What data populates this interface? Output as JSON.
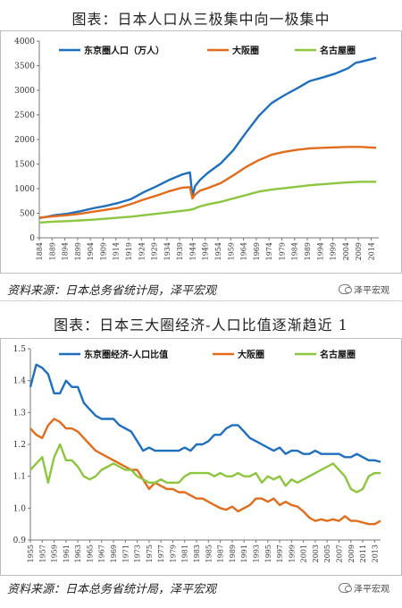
{
  "chart_data": [
    {
      "type": "line",
      "title": "图表：日本人口从三极集中向一极集中",
      "source": "资料来源：日本总务省统计局，泽平宏观",
      "watermark": "泽平宏观",
      "xlim": [
        1884,
        2017
      ],
      "ylim": [
        0,
        4000
      ],
      "yticks": [
        0,
        500,
        1000,
        1500,
        2000,
        2500,
        3000,
        3500,
        4000
      ],
      "xtick_labels": [
        "1884",
        "1889",
        "1894",
        "1899",
        "1904",
        "1909",
        "1914",
        "1919",
        "1924",
        "1929",
        "1934",
        "1939",
        "1944",
        "1949",
        "1954",
        "1959",
        "1964",
        "1969",
        "1974",
        "1979",
        "1984",
        "1989",
        "1994",
        "1999",
        "2004",
        "2009",
        "2014"
      ],
      "legend_position": "top",
      "series": [
        {
          "name": "东京圈人口（万人）",
          "color": "#1f6fbf",
          "x": [
            1884,
            1890,
            1895,
            1900,
            1905,
            1910,
            1915,
            1920,
            1925,
            1930,
            1935,
            1940,
            1943,
            1944,
            1945,
            1947,
            1950,
            1955,
            1960,
            1965,
            1970,
            1975,
            1980,
            1985,
            1990,
            1995,
            2000,
            2005,
            2008,
            2010,
            2013,
            2016
          ],
          "y": [
            400,
            460,
            490,
            540,
            600,
            650,
            710,
            790,
            930,
            1050,
            1180,
            1290,
            1330,
            850,
            1050,
            1180,
            1320,
            1510,
            1780,
            2140,
            2480,
            2740,
            2900,
            3040,
            3190,
            3260,
            3340,
            3450,
            3560,
            3580,
            3620,
            3660
          ]
        },
        {
          "name": "大阪圈",
          "color": "#e06c1c",
          "x": [
            1884,
            1890,
            1895,
            1900,
            1905,
            1910,
            1915,
            1920,
            1925,
            1930,
            1935,
            1940,
            1943,
            1944,
            1945,
            1947,
            1950,
            1955,
            1960,
            1965,
            1970,
            1975,
            1980,
            1985,
            1990,
            1995,
            2000,
            2005,
            2010,
            2016
          ],
          "y": [
            410,
            440,
            460,
            490,
            530,
            570,
            610,
            690,
            780,
            860,
            950,
            1020,
            1030,
            800,
            880,
            960,
            1010,
            1110,
            1270,
            1440,
            1580,
            1690,
            1750,
            1790,
            1820,
            1830,
            1840,
            1850,
            1850,
            1830
          ]
        },
        {
          "name": "名古屋圈",
          "color": "#8cc63f",
          "x": [
            1884,
            1890,
            1895,
            1900,
            1905,
            1910,
            1915,
            1920,
            1925,
            1930,
            1935,
            1940,
            1943,
            1944,
            1945,
            1947,
            1950,
            1955,
            1960,
            1965,
            1970,
            1975,
            1980,
            1985,
            1990,
            1995,
            2000,
            2005,
            2010,
            2016
          ],
          "y": [
            310,
            330,
            340,
            355,
            370,
            390,
            410,
            430,
            460,
            490,
            520,
            550,
            570,
            580,
            600,
            640,
            680,
            730,
            800,
            870,
            940,
            980,
            1010,
            1040,
            1070,
            1090,
            1110,
            1130,
            1140,
            1140
          ]
        }
      ]
    },
    {
      "type": "line",
      "title": "图表：日本三大圈经济-人口比值逐渐趋近 1",
      "source": "资料来源：日本总务省统计局，泽平宏观",
      "watermark": "泽平宏观",
      "xlim": [
        1955,
        2014
      ],
      "ylim": [
        0.9,
        1.5
      ],
      "yticks": [
        0.9,
        1.0,
        1.1,
        1.2,
        1.3,
        1.4,
        1.5
      ],
      "xtick_labels": [
        "1955",
        "1957",
        "1959",
        "1961",
        "1963",
        "1965",
        "1967",
        "1969",
        "1971",
        "1973",
        "1975",
        "1977",
        "1979",
        "1981",
        "1983",
        "1985",
        "1987",
        "1989",
        "1991",
        "1993",
        "1995",
        "1997",
        "1999",
        "2001",
        "2003",
        "2005",
        "2007",
        "2009",
        "2011",
        "2013"
      ],
      "legend_position": "top",
      "series": [
        {
          "name": "东京圈经济-人口比值",
          "color": "#1f6fbf",
          "x": [
            1955,
            1956,
            1957,
            1958,
            1959,
            1960,
            1961,
            1962,
            1963,
            1964,
            1965,
            1966,
            1967,
            1968,
            1969,
            1970,
            1971,
            1972,
            1973,
            1974,
            1975,
            1976,
            1977,
            1978,
            1979,
            1980,
            1981,
            1982,
            1983,
            1984,
            1985,
            1986,
            1987,
            1988,
            1989,
            1990,
            1991,
            1992,
            1993,
            1994,
            1995,
            1996,
            1997,
            1998,
            1999,
            2000,
            2001,
            2002,
            2003,
            2004,
            2005,
            2006,
            2007,
            2008,
            2009,
            2010,
            2011,
            2012,
            2013,
            2014
          ],
          "y": [
            1.38,
            1.45,
            1.44,
            1.42,
            1.36,
            1.36,
            1.4,
            1.38,
            1.38,
            1.33,
            1.31,
            1.29,
            1.28,
            1.28,
            1.28,
            1.26,
            1.25,
            1.24,
            1.21,
            1.18,
            1.19,
            1.18,
            1.18,
            1.18,
            1.18,
            1.18,
            1.19,
            1.18,
            1.2,
            1.2,
            1.21,
            1.23,
            1.23,
            1.25,
            1.26,
            1.26,
            1.24,
            1.22,
            1.21,
            1.2,
            1.19,
            1.18,
            1.19,
            1.17,
            1.18,
            1.18,
            1.17,
            1.17,
            1.18,
            1.17,
            1.17,
            1.17,
            1.17,
            1.16,
            1.16,
            1.17,
            1.16,
            1.15,
            1.15,
            1.145
          ]
        },
        {
          "name": "大阪圈",
          "color": "#e06c1c",
          "x": [
            1955,
            1956,
            1957,
            1958,
            1959,
            1960,
            1961,
            1962,
            1963,
            1964,
            1965,
            1966,
            1967,
            1968,
            1969,
            1970,
            1971,
            1972,
            1973,
            1974,
            1975,
            1976,
            1977,
            1978,
            1979,
            1980,
            1981,
            1982,
            1983,
            1984,
            1985,
            1986,
            1987,
            1988,
            1989,
            1990,
            1991,
            1992,
            1993,
            1994,
            1995,
            1996,
            1997,
            1998,
            1999,
            2000,
            2001,
            2002,
            2003,
            2004,
            2005,
            2006,
            2007,
            2008,
            2009,
            2010,
            2011,
            2012,
            2013,
            2014
          ],
          "y": [
            1.25,
            1.23,
            1.22,
            1.26,
            1.28,
            1.27,
            1.25,
            1.25,
            1.24,
            1.22,
            1.2,
            1.18,
            1.17,
            1.16,
            1.15,
            1.14,
            1.13,
            1.12,
            1.12,
            1.09,
            1.06,
            1.08,
            1.07,
            1.06,
            1.06,
            1.05,
            1.05,
            1.04,
            1.03,
            1.03,
            1.02,
            1.01,
            1.0,
            0.995,
            1.005,
            0.99,
            1.0,
            1.01,
            1.03,
            1.03,
            1.02,
            1.03,
            1.01,
            1.02,
            1.01,
            1.005,
            0.99,
            0.97,
            0.96,
            0.965,
            0.96,
            0.965,
            0.96,
            0.975,
            0.96,
            0.96,
            0.955,
            0.95,
            0.95,
            0.96
          ]
        },
        {
          "name": "名古屋圈",
          "color": "#8cc63f",
          "x": [
            1955,
            1956,
            1957,
            1958,
            1959,
            1960,
            1961,
            1962,
            1963,
            1964,
            1965,
            1966,
            1967,
            1968,
            1969,
            1970,
            1971,
            1972,
            1973,
            1974,
            1975,
            1976,
            1977,
            1978,
            1979,
            1980,
            1981,
            1982,
            1983,
            1984,
            1985,
            1986,
            1987,
            1988,
            1989,
            1990,
            1991,
            1992,
            1993,
            1994,
            1995,
            1996,
            1997,
            1998,
            1999,
            2000,
            2001,
            2002,
            2003,
            2004,
            2005,
            2006,
            2007,
            2008,
            2009,
            2010,
            2011,
            2012,
            2013,
            2014
          ],
          "y": [
            1.12,
            1.14,
            1.16,
            1.08,
            1.16,
            1.2,
            1.15,
            1.15,
            1.13,
            1.1,
            1.09,
            1.1,
            1.12,
            1.13,
            1.14,
            1.13,
            1.12,
            1.12,
            1.1,
            1.09,
            1.08,
            1.08,
            1.09,
            1.08,
            1.08,
            1.08,
            1.1,
            1.11,
            1.11,
            1.11,
            1.11,
            1.1,
            1.11,
            1.1,
            1.1,
            1.11,
            1.1,
            1.1,
            1.11,
            1.08,
            1.1,
            1.09,
            1.1,
            1.07,
            1.09,
            1.08,
            1.09,
            1.1,
            1.11,
            1.12,
            1.13,
            1.14,
            1.12,
            1.1,
            1.06,
            1.05,
            1.06,
            1.1,
            1.11,
            1.11
          ]
        }
      ]
    }
  ]
}
